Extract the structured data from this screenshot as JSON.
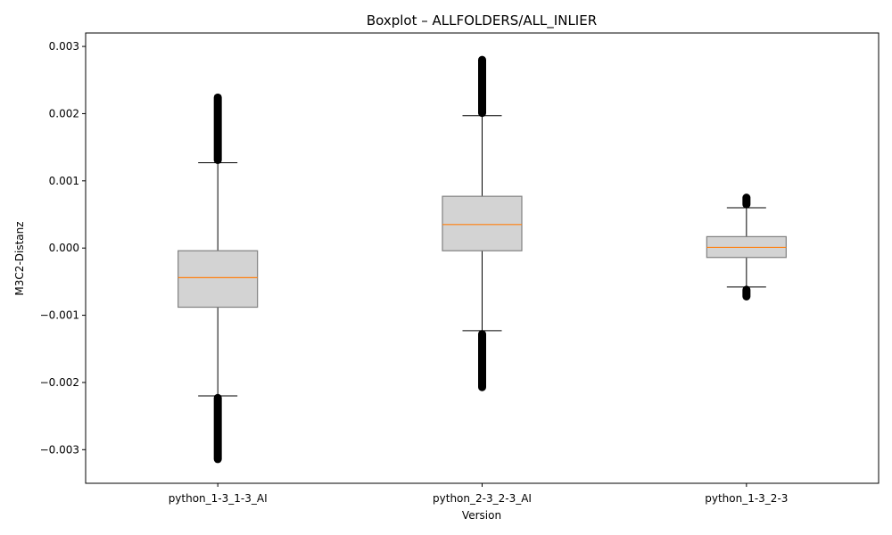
{
  "chart_data": {
    "type": "boxplot",
    "title": "Boxplot – ALLFOLDERS/ALL_INLIER",
    "xlabel": "Version",
    "ylabel": "M3C2-Distanz",
    "ylim": [
      -0.0035,
      0.0032
    ],
    "yticks": [
      -0.003,
      -0.002,
      -0.001,
      0.0,
      0.001,
      0.002,
      0.003
    ],
    "ytick_labels": [
      "−0.003",
      "−0.002",
      "−0.001",
      "0.000",
      "0.001",
      "0.002",
      "0.003"
    ],
    "grid": false,
    "colors": {
      "box_fill": "#d3d3d3",
      "box_edge": "#808080",
      "median": "#ff7f0e",
      "whisker": "#000000",
      "flier": "#000000"
    },
    "categories": [
      "python_1-3_1-3_AI",
      "python_2-3_2-3_AI",
      "python_1-3_2-3"
    ],
    "boxes": [
      {
        "name": "python_1-3_1-3_AI",
        "q1": -0.00088,
        "median": -0.00044,
        "q3": -4e-05,
        "whisker_low": -0.0022,
        "whisker_high": 0.00127,
        "flier_low_range": [
          -0.0032,
          -0.00217
        ],
        "flier_high_range": [
          0.00125,
          0.0023
        ]
      },
      {
        "name": "python_2-3_2-3_AI",
        "q1": -4e-05,
        "median": 0.00035,
        "q3": 0.00077,
        "whisker_low": -0.00123,
        "whisker_high": 0.00197,
        "flier_low_range": [
          -0.00213,
          -0.00122
        ],
        "flier_high_range": [
          0.00195,
          0.00286
        ]
      },
      {
        "name": "python_1-3_2-3",
        "q1": -0.00014,
        "median": 1e-05,
        "q3": 0.00017,
        "whisker_low": -0.00058,
        "whisker_high": 0.0006,
        "flier_low_range": [
          -0.00078,
          -0.00056
        ],
        "flier_high_range": [
          0.00059,
          0.00081
        ]
      }
    ]
  }
}
